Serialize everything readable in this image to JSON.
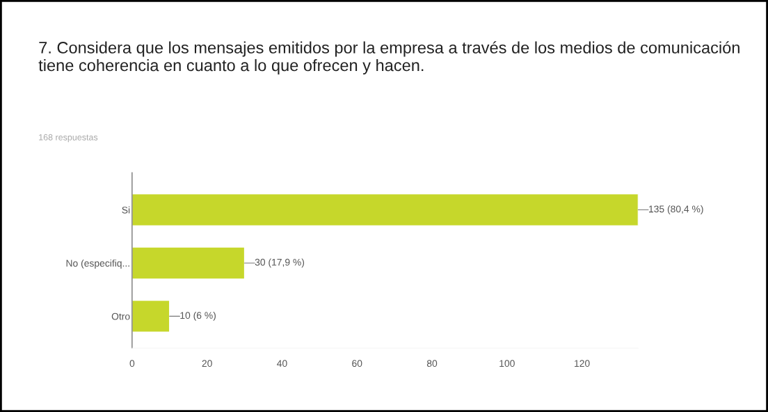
{
  "chart_data": {
    "type": "bar",
    "orientation": "horizontal",
    "title": "7. Considera que los mensajes emitidos por la empresa a través de los medios de comunicación tiene coherencia en cuanto a lo que ofrecen y hacen.",
    "subtitle": "168 respuestas",
    "categories": [
      "Si",
      "No (especifiq...",
      "Otro"
    ],
    "values": [
      135,
      30,
      10
    ],
    "value_labels": [
      "135 (80,4 %)",
      "30 (17,9 %)",
      "10 (6 %)"
    ],
    "color": "#c6d72b",
    "xlim": [
      0,
      135
    ],
    "xticks": [
      0,
      20,
      40,
      60,
      80,
      100,
      120
    ],
    "grid": false,
    "legend": false
  }
}
